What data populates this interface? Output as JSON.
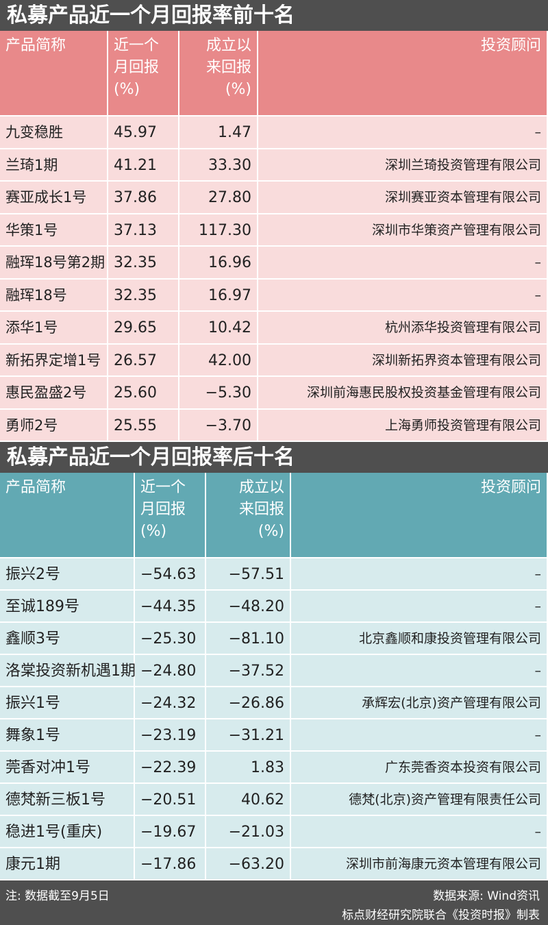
{
  "tables": [
    {
      "title": "私募产品近一个月回报率前十名",
      "headers": [
        [
          "产品简称"
        ],
        [
          "近一个",
          "月回报",
          "(%)"
        ],
        [
          "成立以",
          "来回报",
          "(%)"
        ],
        [
          "投资顾问"
        ]
      ],
      "rows": [
        [
          "九变稳胜",
          "45.97",
          "1.47",
          "–"
        ],
        [
          "兰琦1期",
          "41.21",
          "33.30",
          "深圳兰琦投资管理有限公司"
        ],
        [
          "赛亚成长1号",
          "37.86",
          "27.80",
          "深圳赛亚资本管理有限公司"
        ],
        [
          "华策1号",
          "37.13",
          "117.30",
          "深圳市华策资产管理有限公司"
        ],
        [
          "融珲18号第2期",
          "32.35",
          "16.96",
          "–"
        ],
        [
          "融珲18号",
          "32.35",
          "16.97",
          "–"
        ],
        [
          "添华1号",
          "29.65",
          "10.42",
          "杭州添华投资管理有限公司"
        ],
        [
          "新拓界定增1号",
          "26.57",
          "42.00",
          "深圳新拓界资本管理有限公司"
        ],
        [
          "惠民盈盛2号",
          "25.60",
          "−5.30",
          "深圳前海惠民股权投资基金管理有限公司"
        ],
        [
          "勇师2号",
          "25.55",
          "−3.70",
          "上海勇师投资管理有限公司"
        ]
      ]
    },
    {
      "title": "私募产品近一个月回报率后十名",
      "headers": [
        [
          "产品简称"
        ],
        [
          "近一个",
          "月回报",
          "(%)"
        ],
        [
          "成立以",
          "来回报",
          "(%)"
        ],
        [
          "投资顾问"
        ]
      ],
      "rows": [
        [
          "振兴2号",
          "−54.63",
          "−57.51",
          "–"
        ],
        [
          "至诚189号",
          "−44.35",
          "−48.20",
          "–"
        ],
        [
          "鑫顺3号",
          "−25.30",
          "−81.10",
          "北京鑫顺和康投资管理有限公司"
        ],
        [
          "洛棠投资新机遇1期",
          "−24.80",
          "−37.52",
          "–"
        ],
        [
          "振兴1号",
          "−24.32",
          "−26.86",
          "承辉宏(北京)资产管理有限公司"
        ],
        [
          "舞象1号",
          "−23.19",
          "−31.21",
          "–"
        ],
        [
          "莞香对冲1号",
          "−22.39",
          "1.83",
          "广东莞香资本投资有限公司"
        ],
        [
          "德梵新三板1号",
          "−20.51",
          "40.62",
          "德梵(北京)资产管理有限责任公司"
        ],
        [
          "稳进1号(重庆)",
          "−19.67",
          "−21.03",
          "–"
        ],
        [
          "康元1期",
          "−17.86",
          "−63.20",
          "深圳市前海康元资本管理有限公司"
        ]
      ]
    }
  ],
  "footer": {
    "note": "注: 数据截至9月5日",
    "source": "数据来源: Wind资讯",
    "credit": "标点财经研究院联合《投资时报》制表"
  }
}
